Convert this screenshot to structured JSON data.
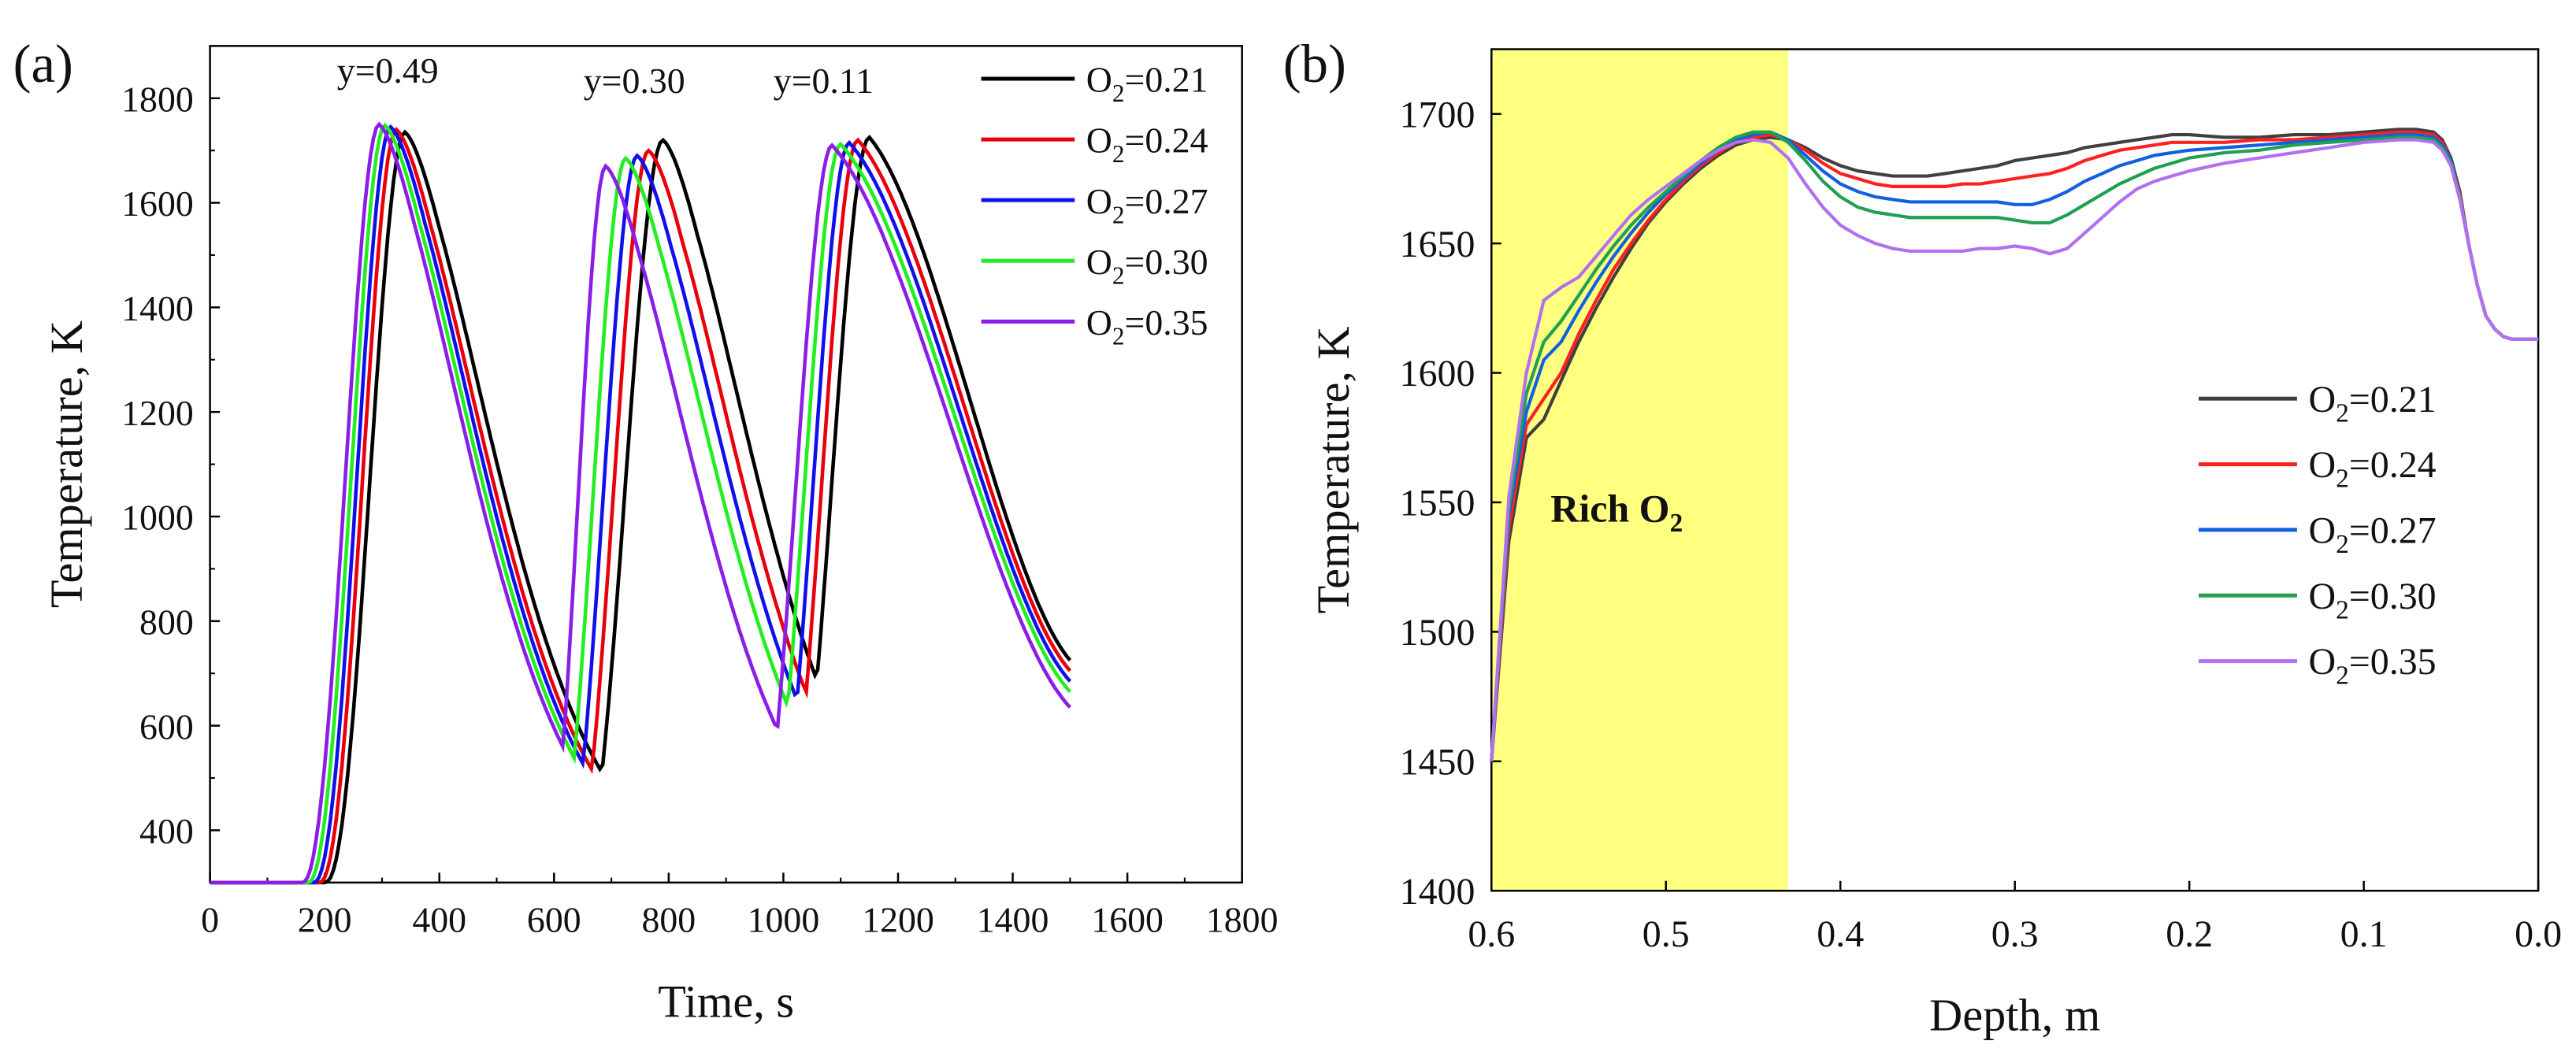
{
  "chart_data": [
    {
      "type": "line",
      "panel_label": "(a)",
      "title": "",
      "xlabel": "Time, s",
      "ylabel": "Temperature, K",
      "xlim": [
        0,
        1800
      ],
      "ylim": [
        300,
        1900
      ],
      "x_ticks": [
        0,
        200,
        400,
        600,
        800,
        1000,
        1200,
        1400,
        1600,
        1800
      ],
      "y_ticks": [
        400,
        600,
        800,
        1000,
        1200,
        1400,
        1600,
        1800
      ],
      "grid": false,
      "legend_position": "top-right",
      "annotations": [
        {
          "text": "y=0.49",
          "x": 310,
          "y": 1830
        },
        {
          "text": "y=0.30",
          "x": 740,
          "y": 1810
        },
        {
          "text": "y=0.11",
          "x": 1070,
          "y": 1810
        }
      ],
      "series": [
        {
          "name": "O2=0.21",
          "name_main": "O",
          "name_sub": "2",
          "name_rest": "=0.21",
          "color": "#000000",
          "peaks": [
            {
              "start": 200,
              "peak": 340,
              "peakT": 1735
            },
            {
              "start": 640,
              "peak": 790,
              "peakT": 1720
            },
            {
              "start": 1000,
              "peak": 1150,
              "peakT": 1725
            }
          ],
          "end_temp": 725
        },
        {
          "name": "O2=0.24",
          "name_main": "O",
          "name_sub": "2",
          "name_rest": "=0.24",
          "color": "#e8000b",
          "peaks": [
            {
              "start": 190,
              "peak": 325,
              "peakT": 1740
            },
            {
              "start": 625,
              "peak": 765,
              "peakT": 1700
            },
            {
              "start": 985,
              "peak": 1130,
              "peakT": 1720
            }
          ],
          "end_temp": 705
        },
        {
          "name": "O2=0.27",
          "name_main": "O",
          "name_sub": "2",
          "name_rest": "=0.27",
          "color": "#1010ee",
          "peaks": [
            {
              "start": 180,
              "peak": 315,
              "peakT": 1745
            },
            {
              "start": 610,
              "peak": 745,
              "peakT": 1690
            },
            {
              "start": 970,
              "peak": 1115,
              "peakT": 1715
            }
          ],
          "end_temp": 685
        },
        {
          "name": "O2=0.30",
          "name_main": "O",
          "name_sub": "2",
          "name_rest": "=0.30",
          "color": "#22ee22",
          "peaks": [
            {
              "start": 170,
              "peak": 305,
              "peakT": 1748
            },
            {
              "start": 595,
              "peak": 725,
              "peakT": 1685
            },
            {
              "start": 955,
              "peak": 1100,
              "peakT": 1712
            }
          ],
          "end_temp": 665
        },
        {
          "name": "O2=0.35",
          "name_main": "O",
          "name_sub": "2",
          "name_rest": "=0.35",
          "color": "#8a1ee8",
          "peaks": [
            {
              "start": 160,
              "peak": 295,
              "peakT": 1750
            },
            {
              "start": 580,
              "peak": 690,
              "peakT": 1670
            },
            {
              "start": 940,
              "peak": 1085,
              "peakT": 1710
            }
          ],
          "end_temp": 635
        }
      ]
    },
    {
      "type": "line",
      "panel_label": "(b)",
      "title": "",
      "xlabel": "Depth, m",
      "ylabel": "Temperature, K",
      "xlim": [
        0.6,
        0.0
      ],
      "ylim": [
        1400,
        1725
      ],
      "x_ticks": [
        0.6,
        0.5,
        0.4,
        0.3,
        0.2,
        0.1,
        0.0
      ],
      "x_tick_labels": [
        "0.6",
        "0.5",
        "0.4",
        "0.3",
        "0.2",
        "0.1",
        "0.0"
      ],
      "y_ticks": [
        1400,
        1450,
        1500,
        1550,
        1600,
        1650,
        1700
      ],
      "grid": false,
      "legend_position": "right",
      "highlight": {
        "x_from": 0.6,
        "x_to": 0.43,
        "color": "#ffff80",
        "label_main": "Rich O",
        "label_sub": "2"
      },
      "x": [
        0.6,
        0.59,
        0.58,
        0.57,
        0.56,
        0.55,
        0.54,
        0.53,
        0.52,
        0.51,
        0.5,
        0.49,
        0.48,
        0.47,
        0.46,
        0.45,
        0.44,
        0.43,
        0.42,
        0.41,
        0.4,
        0.39,
        0.38,
        0.37,
        0.36,
        0.35,
        0.34,
        0.33,
        0.32,
        0.31,
        0.3,
        0.29,
        0.28,
        0.27,
        0.26,
        0.25,
        0.24,
        0.23,
        0.22,
        0.21,
        0.2,
        0.18,
        0.16,
        0.14,
        0.12,
        0.1,
        0.08,
        0.07,
        0.06,
        0.055,
        0.05,
        0.045,
        0.04,
        0.035,
        0.03,
        0.025,
        0.02,
        0.015,
        0.01,
        0.005,
        0.0
      ],
      "series": [
        {
          "name": "O2=0.21",
          "name_main": "O",
          "name_sub": "2",
          "name_rest": "=0.21",
          "color": "#404040",
          "values": [
            1450,
            1535,
            1575,
            1582,
            1597,
            1612,
            1625,
            1637,
            1648,
            1658,
            1666,
            1673,
            1679,
            1684,
            1688,
            1690,
            1691,
            1690,
            1687,
            1683,
            1680,
            1678,
            1677,
            1676,
            1676,
            1676,
            1677,
            1678,
            1679,
            1680,
            1682,
            1683,
            1684,
            1685,
            1687,
            1688,
            1689,
            1690,
            1691,
            1692,
            1692,
            1691,
            1691,
            1692,
            1692,
            1693,
            1694,
            1694,
            1693,
            1690,
            1683,
            1670,
            1650,
            1634,
            1622,
            1617,
            1614,
            1613,
            1613,
            1613,
            1613
          ]
        },
        {
          "name": "O2=0.24",
          "name_main": "O",
          "name_sub": "2",
          "name_rest": "=0.24",
          "color": "#ff2020",
          "values": [
            1450,
            1540,
            1580,
            1590,
            1600,
            1615,
            1628,
            1640,
            1650,
            1659,
            1667,
            1674,
            1680,
            1685,
            1689,
            1691,
            1692,
            1690,
            1686,
            1681,
            1677,
            1675,
            1673,
            1672,
            1672,
            1672,
            1672,
            1673,
            1673,
            1674,
            1675,
            1676,
            1677,
            1679,
            1682,
            1684,
            1686,
            1687,
            1688,
            1689,
            1689,
            1689,
            1690,
            1690,
            1691,
            1692,
            1693,
            1693,
            1692,
            1689,
            1682,
            1669,
            1650,
            1634,
            1622,
            1617,
            1614,
            1613,
            1613,
            1613,
            1613
          ]
        },
        {
          "name": "O2=0.27",
          "name_main": "O",
          "name_sub": "2",
          "name_rest": "=0.27",
          "color": "#1060e0",
          "values": [
            1450,
            1545,
            1585,
            1605,
            1612,
            1624,
            1635,
            1645,
            1654,
            1662,
            1669,
            1675,
            1681,
            1686,
            1690,
            1692,
            1693,
            1690,
            1684,
            1678,
            1673,
            1670,
            1668,
            1667,
            1666,
            1666,
            1666,
            1666,
            1666,
            1666,
            1665,
            1665,
            1667,
            1670,
            1674,
            1677,
            1680,
            1682,
            1684,
            1685,
            1686,
            1687,
            1688,
            1689,
            1690,
            1691,
            1692,
            1692,
            1691,
            1688,
            1682,
            1668,
            1650,
            1634,
            1622,
            1617,
            1614,
            1613,
            1613,
            1613,
            1613
          ]
        },
        {
          "name": "O2=0.30",
          "name_main": "O",
          "name_sub": "2",
          "name_rest": "=0.30",
          "color": "#20a050",
          "values": [
            1450,
            1548,
            1592,
            1612,
            1620,
            1630,
            1640,
            1649,
            1657,
            1664,
            1670,
            1676,
            1682,
            1687,
            1691,
            1693,
            1693,
            1689,
            1682,
            1674,
            1668,
            1664,
            1662,
            1661,
            1660,
            1660,
            1660,
            1660,
            1660,
            1660,
            1659,
            1658,
            1658,
            1661,
            1665,
            1669,
            1673,
            1676,
            1679,
            1681,
            1683,
            1685,
            1686,
            1688,
            1689,
            1690,
            1691,
            1691,
            1690,
            1687,
            1681,
            1668,
            1650,
            1634,
            1622,
            1617,
            1614,
            1613,
            1613,
            1613,
            1613
          ]
        },
        {
          "name": "O2=0.35",
          "name_main": "O",
          "name_sub": "2",
          "name_rest": "=0.35",
          "color": "#b070f0",
          "values": [
            1450,
            1552,
            1600,
            1628,
            1633,
            1637,
            1645,
            1653,
            1661,
            1667,
            1672,
            1677,
            1682,
            1686,
            1689,
            1690,
            1689,
            1683,
            1673,
            1664,
            1657,
            1653,
            1650,
            1648,
            1647,
            1647,
            1647,
            1647,
            1648,
            1648,
            1649,
            1648,
            1646,
            1648,
            1654,
            1660,
            1666,
            1671,
            1674,
            1676,
            1678,
            1681,
            1683,
            1685,
            1687,
            1689,
            1690,
            1690,
            1689,
            1686,
            1680,
            1667,
            1650,
            1634,
            1622,
            1617,
            1614,
            1613,
            1613,
            1613,
            1613
          ]
        }
      ]
    }
  ]
}
